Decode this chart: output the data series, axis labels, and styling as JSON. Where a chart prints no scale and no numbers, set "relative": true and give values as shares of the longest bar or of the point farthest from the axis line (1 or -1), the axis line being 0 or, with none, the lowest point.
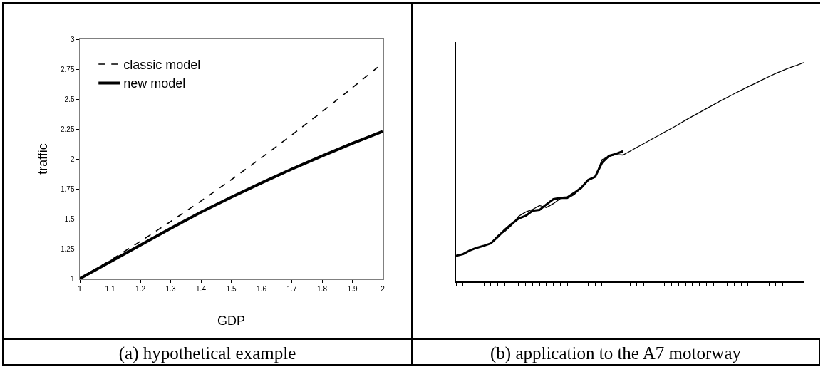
{
  "chart_data": [
    {
      "type": "line",
      "xlabel": "GDP",
      "ylabel": "traffic",
      "annotations": [
        "(a) hypothetical example"
      ],
      "xlim": [
        1,
        2
      ],
      "ylim": [
        1,
        3
      ],
      "xticks": [
        1,
        1.1,
        1.2,
        1.3,
        1.4,
        1.5,
        1.6,
        1.7,
        1.8,
        1.9,
        2
      ],
      "yticks": [
        1,
        1.25,
        1.5,
        1.75,
        2,
        2.25,
        2.5,
        2.75,
        3
      ],
      "x": [
        1,
        1.1,
        1.2,
        1.3,
        1.4,
        1.5,
        1.6,
        1.7,
        1.8,
        1.9,
        2
      ],
      "grid": false,
      "legend": "top left",
      "marker": "none",
      "series": [
        {
          "name": "classic model",
          "color": "#000000",
          "line_style": "dashed",
          "values": [
            1,
            1.152,
            1.311,
            1.477,
            1.648,
            1.826,
            2.01,
            2.2,
            2.394,
            2.595,
            2.8
          ]
        },
        {
          "name": "new model",
          "color": "#000000",
          "line_style": "solid",
          "values": [
            1,
            1.14,
            1.28,
            1.42,
            1.555,
            1.68,
            1.8,
            1.915,
            2.025,
            2.13,
            2.23
          ]
        }
      ]
    },
    {
      "type": "line",
      "relative": true,
      "annotations": [
        "(b) application to the A7 motorway"
      ],
      "grid": false,
      "legend": false,
      "marker": "none",
      "categories": [
        null,
        null,
        null,
        null,
        null,
        null,
        null,
        null,
        null,
        null,
        null,
        null,
        null,
        null,
        null,
        null,
        null,
        null,
        null,
        null,
        null,
        null,
        null,
        null,
        null,
        null,
        null,
        null,
        null,
        null,
        null,
        null,
        null,
        null,
        null,
        null,
        null,
        null,
        null,
        null,
        null,
        null,
        null,
        null,
        null,
        null,
        null,
        null,
        null,
        null,
        null
      ],
      "series": [
        {
          "color": "#000000",
          "line_style": "solid",
          "values": [
            0.117,
            0.125,
            0.142,
            0.154,
            0.163,
            0.174,
            0.204,
            0.236,
            0.263,
            0.288,
            0.3,
            0.323,
            0.327,
            0.352,
            0.376,
            0.382,
            0.384,
            0.405,
            0.428,
            0.464,
            0.478,
            0.543,
            0.574,
            0.583,
            0.595,
            null,
            null,
            null,
            null,
            null,
            null,
            null,
            null,
            null,
            null,
            null,
            null,
            null,
            null,
            null,
            null,
            null,
            null,
            null,
            null,
            null,
            null,
            null,
            null,
            null,
            null
          ]
        },
        {
          "color": "#000000",
          "line_style": "solid",
          "values": [
            0.117,
            0.125,
            0.142,
            0.154,
            0.163,
            0.174,
            0.21,
            0.228,
            0.257,
            0.298,
            0.317,
            0.329,
            0.347,
            0.338,
            0.356,
            0.379,
            0.379,
            0.397,
            0.429,
            0.461,
            0.478,
            0.557,
            0.572,
            0.58,
            0.578,
            0.595,
            0.613,
            0.63,
            0.648,
            0.665,
            0.683,
            0.7,
            0.718,
            0.737,
            0.755,
            0.772,
            0.79,
            0.807,
            0.825,
            0.841,
            0.858,
            0.874,
            0.89,
            0.905,
            0.921,
            0.936,
            0.951,
            0.964,
            0.977,
            0.988,
            1
          ]
        }
      ]
    }
  ]
}
